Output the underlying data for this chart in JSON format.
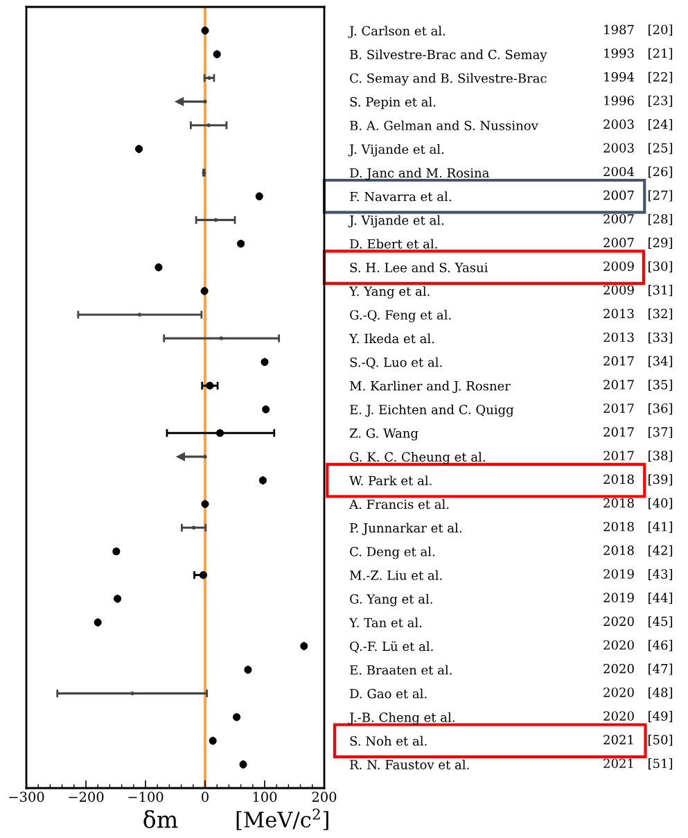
{
  "chart_data": {
    "type": "scatter",
    "orientation": "horizontal",
    "categories": [
      "J. Carlson et al.",
      "B. Silvestre-Brac and C. Semay",
      "C. Semay and B. Silvestre-Brac",
      "S. Pepin et al.",
      "B. A. Gelman and S. Nussinov",
      "J. Vijande et al.",
      "D. Janc and M. Rosina",
      "F. Navarra et al.",
      "J. Vijande et al.",
      "D. Ebert et al.",
      "S. H. Lee and S. Yasui",
      "Y. Yang et al.",
      "G.-Q. Feng et al.",
      "Y. Ikeda et al.",
      "S.-Q. Luo et al.",
      "M. Karliner and J. Rosner",
      "E. J. Eichten and C. Quigg",
      "Z. G. Wang",
      "G. K. C. Cheung et al.",
      "W. Park et al.",
      "A. Francis et al.",
      "P. Junnarkar et al.",
      "C. Deng et al.",
      "M.-Z. Liu et al.",
      "G. Yang et al.",
      "Y. Tan et al.",
      "Q.-F. Lü et al.",
      "E. Braaten et al.",
      "D. Gao et al.",
      "J.-B. Cheng et al.",
      "S. Noh et al.",
      "R. N. Faustov et al."
    ],
    "series": [
      {
        "color": "#000000",
        "marker": "circle",
        "values": [
          0,
          20,
          null,
          null,
          null,
          -111,
          null,
          91,
          null,
          60,
          -78,
          -1,
          null,
          null,
          100,
          8,
          102,
          25,
          null,
          97,
          0,
          null,
          -149,
          -3,
          -147,
          -180,
          166,
          72,
          null,
          53,
          13,
          64
        ],
        "errors": [
          null,
          null,
          null,
          null,
          null,
          null,
          null,
          null,
          null,
          null,
          null,
          null,
          null,
          null,
          null,
          [
            -5,
            21
          ],
          null,
          [
            -64,
            116
          ],
          null,
          null,
          null,
          null,
          null,
          [
            -18,
            -3
          ],
          null,
          null,
          null,
          null,
          null,
          null,
          null,
          null
        ]
      },
      {
        "color": "#444444",
        "marker": "circle",
        "values": [
          null,
          null,
          7,
          0,
          6,
          null,
          -2,
          null,
          18,
          null,
          null,
          null,
          -110,
          27,
          null,
          null,
          null,
          null,
          0,
          null,
          null,
          -19,
          null,
          null,
          null,
          null,
          null,
          null,
          -122,
          null,
          null,
          null
        ],
        "errors": [
          null,
          null,
          8,
          [
            -43,
            0
          ],
          30,
          null,
          1,
          null,
          [
            -15,
            50
          ],
          null,
          null,
          null,
          [
            -213,
            -6
          ],
          [
            -69,
            124
          ],
          null,
          null,
          null,
          null,
          [
            -41,
            0
          ],
          null,
          null,
          20,
          null,
          null,
          null,
          null,
          null,
          null,
          [
            -248,
            3
          ],
          null,
          null,
          null
        ]
      }
    ],
    "xlim": [
      -300,
      200
    ],
    "xticks": [
      -300,
      -200,
      -100,
      0,
      100,
      200
    ],
    "xlabel": "δm",
    "ref_lines": [
      {
        "axis": "x",
        "value": 0,
        "color": "#f7a54a"
      }
    ],
    "grid": false,
    "legend": false,
    "annotations": [
      "[MeV/c$^{2}$]",
      "1987",
      "[20]",
      "1993",
      "[21]",
      "1994",
      "[22]",
      "1996",
      "[23]",
      "2003",
      "[24]",
      "2003",
      "[25]",
      "2004",
      "[26]",
      "2007",
      "[27]",
      "2007",
      "[28]",
      "2007",
      "[29]",
      "2009",
      "[30]",
      "2009",
      "[31]",
      "2013",
      "[32]",
      "2013",
      "[33]",
      "2017",
      "[34]",
      "2017",
      "[35]",
      "2017",
      "[36]",
      "2017",
      "[37]",
      "2017",
      "[38]",
      "2018",
      "[39]",
      "2018",
      "[40]",
      "2018",
      "[41]",
      "2018",
      "[42]",
      "2019",
      "[43]",
      "2019",
      "[44]",
      "2020",
      "[45]",
      "2020",
      "[46]",
      "2020",
      "[47]",
      "2020",
      "[48]",
      "2020",
      "[49]",
      "2021",
      "[50]",
      "2021",
      "[51]"
    ]
  }
}
